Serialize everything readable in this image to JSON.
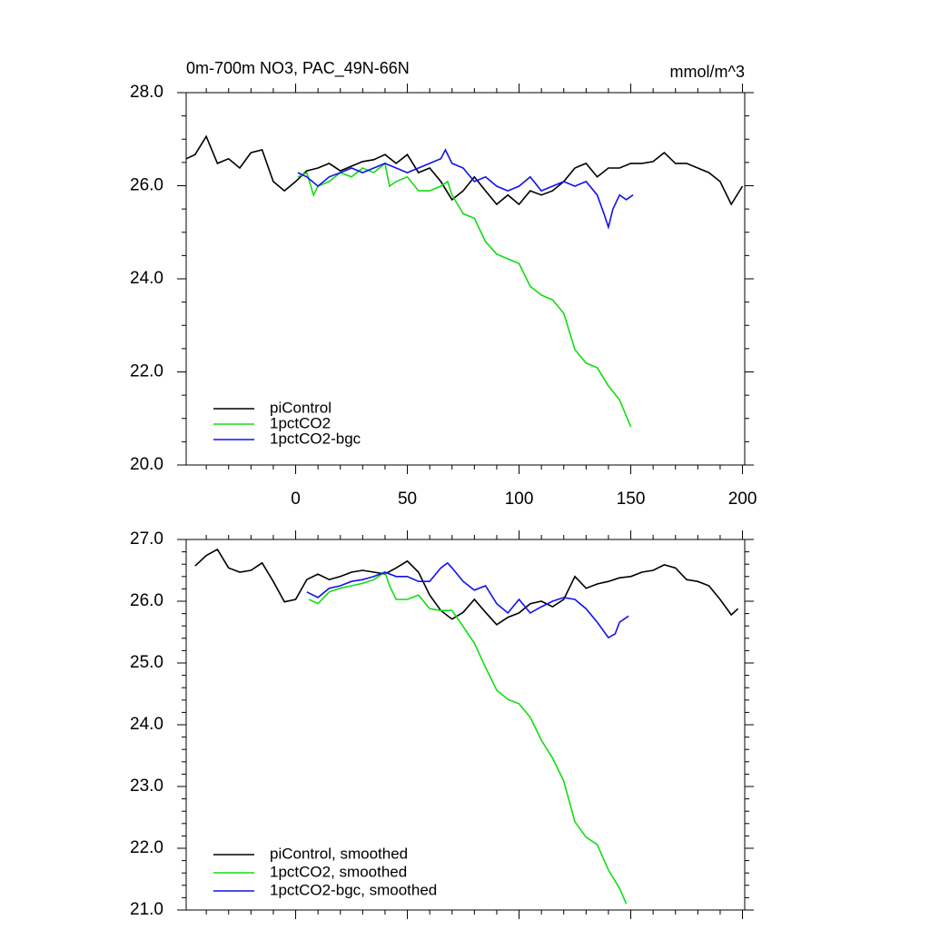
{
  "chart_data": [
    {
      "type": "line",
      "title": "0m-700m NO3, PAC_49N-66N",
      "units": "mmol/m^3",
      "xlim": [
        -49,
        201
      ],
      "xticks": [
        0,
        50,
        100,
        150,
        200
      ],
      "ylim": [
        20,
        28
      ],
      "yticks": [
        {
          "value": 20,
          "label": "20.0"
        },
        {
          "value": 22,
          "label": "22.0"
        },
        {
          "value": 24,
          "label": "24.0"
        },
        {
          "value": 26,
          "label": "26.0"
        },
        {
          "value": 28,
          "label": "28.0"
        }
      ],
      "legend": "lower left",
      "series": [
        {
          "name": "piControl",
          "color": "#000000",
          "x": [
            -49,
            -45,
            -40,
            -35,
            -30,
            -25,
            -20,
            -15,
            -10,
            -5,
            0,
            5,
            10,
            15,
            20,
            25,
            30,
            35,
            40,
            45,
            50,
            55,
            60,
            65,
            70,
            75,
            80,
            85,
            90,
            95,
            100,
            105,
            110,
            115,
            120,
            125,
            130,
            135,
            140,
            145,
            150,
            155,
            160,
            165,
            170,
            175,
            180,
            185,
            190,
            195,
            200
          ],
          "values": [
            26.58,
            26.67,
            27.06,
            26.48,
            26.58,
            26.38,
            26.71,
            26.77,
            26.09,
            25.89,
            26.09,
            26.32,
            26.38,
            26.48,
            26.32,
            26.42,
            26.52,
            26.56,
            26.67,
            26.48,
            26.67,
            26.28,
            26.38,
            26.09,
            25.7,
            25.89,
            26.19,
            25.89,
            25.6,
            25.8,
            25.6,
            25.89,
            25.8,
            25.89,
            26.09,
            26.38,
            26.48,
            26.19,
            26.38,
            26.38,
            26.48,
            26.48,
            26.52,
            26.71,
            26.48,
            26.48,
            26.38,
            26.28,
            26.09,
            25.6,
            25.99
          ]
        },
        {
          "name": "1pctCO2",
          "color": "#11dd11",
          "x": [
            1,
            5,
            8,
            10,
            15,
            20,
            25,
            30,
            35,
            40,
            42,
            45,
            50,
            55,
            60,
            65,
            68,
            70,
            75,
            80,
            85,
            90,
            95,
            100,
            105,
            110,
            115,
            120,
            125,
            130,
            135,
            140,
            145,
            150
          ],
          "values": [
            26.19,
            26.28,
            25.8,
            25.99,
            26.09,
            26.28,
            26.19,
            26.38,
            26.28,
            26.48,
            25.99,
            26.09,
            26.19,
            25.89,
            25.89,
            25.99,
            26.09,
            25.8,
            25.4,
            25.3,
            24.8,
            24.53,
            24.43,
            24.33,
            23.84,
            23.65,
            23.55,
            23.26,
            22.48,
            22.19,
            22.09,
            21.7,
            21.4,
            20.82
          ]
        },
        {
          "name": "1pctCO2-bgc",
          "color": "#1111ee",
          "x": [
            1,
            5,
            10,
            15,
            20,
            25,
            30,
            35,
            40,
            45,
            50,
            55,
            60,
            65,
            67,
            70,
            75,
            80,
            85,
            90,
            95,
            100,
            105,
            110,
            115,
            120,
            125,
            130,
            135,
            138,
            140,
            142,
            145,
            148,
            151
          ],
          "values": [
            26.28,
            26.19,
            25.99,
            26.19,
            26.28,
            26.38,
            26.28,
            26.38,
            26.48,
            26.38,
            26.28,
            26.38,
            26.48,
            26.58,
            26.77,
            26.48,
            26.38,
            26.09,
            26.19,
            25.99,
            25.89,
            25.99,
            26.19,
            25.89,
            25.99,
            26.09,
            25.99,
            26.09,
            25.8,
            25.4,
            25.11,
            25.5,
            25.8,
            25.7,
            25.8
          ]
        }
      ]
    },
    {
      "type": "line",
      "xlim": [
        -49,
        201
      ],
      "xticks": [
        0,
        50,
        100,
        150,
        200
      ],
      "ylim": [
        21,
        27
      ],
      "yticks": [
        {
          "value": 21,
          "label": "21.0"
        },
        {
          "value": 22,
          "label": "22.0"
        },
        {
          "value": 23,
          "label": "23.0"
        },
        {
          "value": 24,
          "label": "24.0"
        },
        {
          "value": 25,
          "label": "25.0"
        },
        {
          "value": 26,
          "label": "26.0"
        },
        {
          "value": 27,
          "label": "27.0"
        }
      ],
      "legend": "lower left",
      "series": [
        {
          "name": "piControl, smoothed",
          "color": "#000000",
          "x": [
            -45,
            -40,
            -35,
            -30,
            -25,
            -20,
            -15,
            -10,
            -5,
            0,
            5,
            10,
            15,
            20,
            25,
            30,
            35,
            40,
            45,
            50,
            55,
            60,
            65,
            70,
            75,
            80,
            85,
            90,
            95,
            100,
            105,
            110,
            115,
            120,
            125,
            130,
            135,
            140,
            145,
            150,
            155,
            160,
            165,
            170,
            175,
            180,
            185,
            190,
            195,
            198
          ],
          "values": [
            26.57,
            26.74,
            26.84,
            26.54,
            26.47,
            26.5,
            26.62,
            26.32,
            25.99,
            26.03,
            26.35,
            26.44,
            26.35,
            26.4,
            26.47,
            26.5,
            26.47,
            26.44,
            26.54,
            26.65,
            26.47,
            26.1,
            25.85,
            25.71,
            25.82,
            26.03,
            25.82,
            25.62,
            25.74,
            25.81,
            25.96,
            26.0,
            25.91,
            26.03,
            26.4,
            26.21,
            26.28,
            26.32,
            26.38,
            26.4,
            26.47,
            26.5,
            26.59,
            26.54,
            26.35,
            26.32,
            26.25,
            26.03,
            25.78,
            25.88
          ]
        },
        {
          "name": "1pctCO2, smoothed",
          "color": "#11dd11",
          "x": [
            6,
            10,
            15,
            20,
            25,
            30,
            35,
            40,
            42,
            45,
            50,
            55,
            60,
            65,
            70,
            75,
            80,
            85,
            90,
            95,
            100,
            105,
            110,
            115,
            120,
            125,
            130,
            135,
            140,
            145,
            148
          ],
          "values": [
            26.03,
            25.96,
            26.15,
            26.21,
            26.25,
            26.29,
            26.35,
            26.47,
            26.25,
            26.03,
            26.03,
            26.1,
            25.88,
            25.85,
            25.85,
            25.59,
            25.32,
            24.93,
            24.56,
            24.41,
            24.34,
            24.12,
            23.75,
            23.46,
            23.09,
            22.43,
            22.18,
            22.06,
            21.65,
            21.35,
            21.1
          ]
        },
        {
          "name": "1pctCO2-bgc, smoothed",
          "color": "#1111ee",
          "x": [
            5,
            10,
            15,
            20,
            25,
            30,
            35,
            40,
            45,
            50,
            55,
            60,
            65,
            68,
            70,
            75,
            80,
            85,
            90,
            95,
            100,
            105,
            110,
            115,
            120,
            125,
            130,
            135,
            140,
            143,
            145,
            149
          ],
          "values": [
            26.15,
            26.06,
            26.21,
            26.25,
            26.32,
            26.35,
            26.4,
            26.47,
            26.4,
            26.4,
            26.32,
            26.32,
            26.54,
            26.62,
            26.54,
            26.32,
            26.18,
            26.25,
            25.96,
            25.81,
            26.03,
            25.81,
            25.91,
            26.0,
            26.06,
            26.03,
            25.88,
            25.66,
            25.41,
            25.47,
            25.66,
            25.76
          ]
        }
      ]
    }
  ]
}
